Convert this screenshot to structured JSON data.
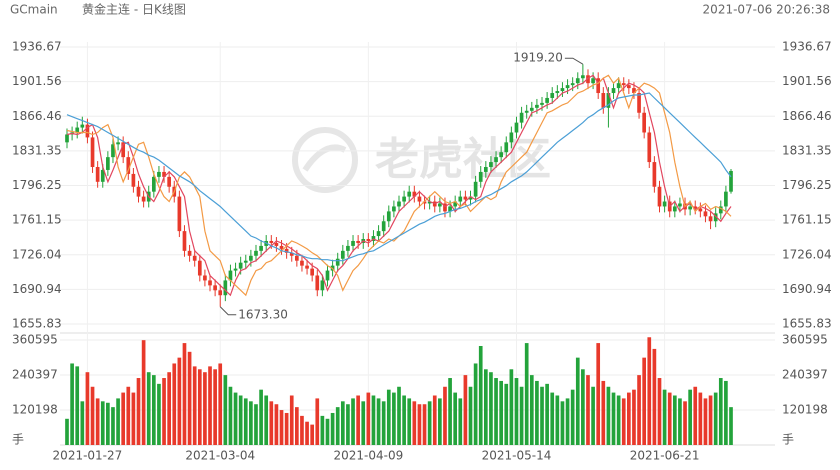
{
  "chart_data": {
    "type": "candlestick",
    "symbol": "GCmain",
    "title": "黄金主连 - 日K线图",
    "timestamp": "2021-07-06 20:26:38",
    "watermark": "老虎社区",
    "grid": true,
    "up_color": "#23a33b",
    "down_color": "#e8392b",
    "categories": [
      null,
      null,
      null,
      null,
      "2021-01-27",
      null,
      null,
      null,
      null,
      null,
      null,
      null,
      null,
      null,
      null,
      null,
      null,
      null,
      null,
      null,
      null,
      null,
      null,
      null,
      null,
      null,
      null,
      null,
      null,
      null,
      "2021-03-04",
      null,
      null,
      null,
      null,
      null,
      null,
      null,
      null,
      null,
      null,
      null,
      null,
      null,
      null,
      null,
      null,
      null,
      null,
      null,
      null,
      null,
      null,
      null,
      null,
      null,
      null,
      null,
      null,
      "2021-04-09",
      null,
      null,
      null,
      null,
      null,
      null,
      null,
      null,
      null,
      null,
      null,
      null,
      null,
      null,
      null,
      null,
      null,
      null,
      null,
      null,
      null,
      null,
      null,
      null,
      null,
      null,
      null,
      null,
      "2021-05-14",
      null,
      null,
      null,
      null,
      null,
      null,
      null,
      null,
      null,
      null,
      null,
      null,
      null,
      null,
      null,
      null,
      null,
      null,
      null,
      null,
      null,
      null,
      null,
      null,
      null,
      null,
      null,
      null,
      "2021-06-21",
      null,
      null,
      null,
      null,
      null,
      null,
      null,
      null,
      null,
      null,
      null,
      null,
      null
    ],
    "open": [
      1840,
      1848,
      1850,
      1855,
      1858,
      1845,
      1815,
      1800,
      1812,
      1825,
      1838,
      1840,
      1825,
      1808,
      1795,
      1785,
      1780,
      1790,
      1805,
      1810,
      1805,
      1795,
      1785,
      1750,
      1730,
      1725,
      1720,
      1705,
      1700,
      1695,
      1690,
      1685,
      1700,
      1710,
      1712,
      1718,
      1720,
      1725,
      1730,
      1735,
      1740,
      1738,
      1735,
      1732,
      1728,
      1725,
      1720,
      1715,
      1712,
      1705,
      1690,
      1700,
      1710,
      1715,
      1722,
      1730,
      1735,
      1740,
      1738,
      1742,
      1740,
      1745,
      1750,
      1760,
      1770,
      1775,
      1780,
      1785,
      1790,
      1785,
      1780,
      1778,
      1780,
      1775,
      1778,
      1770,
      1775,
      1780,
      1785,
      1782,
      1785,
      1800,
      1810,
      1815,
      1820,
      1825,
      1830,
      1840,
      1850,
      1860,
      1870,
      1872,
      1875,
      1878,
      1880,
      1885,
      1890,
      1892,
      1895,
      1898,
      1900,
      1905,
      1908,
      1900,
      1905,
      1890,
      1875,
      1890,
      1895,
      1900,
      1898,
      1895,
      1890,
      1870,
      1850,
      1820,
      1795,
      1775,
      1780,
      1770,
      1775,
      1778,
      1772,
      1775,
      1773,
      1770,
      1765,
      1760,
      1768,
      1775,
      1790
    ],
    "high": [
      1854,
      1856,
      1861,
      1866,
      1864,
      1851,
      1821,
      1818,
      1831,
      1844,
      1846,
      1846,
      1831,
      1814,
      1801,
      1791,
      1796,
      1811,
      1816,
      1816,
      1811,
      1801,
      1791,
      1756,
      1736,
      1731,
      1726,
      1711,
      1706,
      1701,
      1696,
      1706,
      1716,
      1718,
      1724,
      1726,
      1731,
      1736,
      1741,
      1746,
      1746,
      1744,
      1741,
      1738,
      1734,
      1731,
      1726,
      1721,
      1718,
      1711,
      1706,
      1716,
      1721,
      1728,
      1736,
      1741,
      1746,
      1746,
      1748,
      1748,
      1751,
      1756,
      1766,
      1776,
      1781,
      1786,
      1791,
      1796,
      1796,
      1791,
      1786,
      1786,
      1786,
      1784,
      1784,
      1781,
      1786,
      1791,
      1791,
      1791,
      1806,
      1816,
      1821,
      1826,
      1831,
      1836,
      1846,
      1856,
      1866,
      1876,
      1878,
      1881,
      1884,
      1886,
      1891,
      1896,
      1898,
      1901,
      1904,
      1906,
      1911,
      1919.2,
      1914,
      1911,
      1911,
      1896,
      1896,
      1901,
      1906,
      1906,
      1904,
      1901,
      1896,
      1876,
      1856,
      1826,
      1801,
      1786,
      1786,
      1781,
      1784,
      1784,
      1781,
      1781,
      1779,
      1776,
      1771,
      1774,
      1781,
      1796,
      1813
    ],
    "low": [
      1834,
      1842,
      1844,
      1849,
      1839,
      1809,
      1794,
      1794,
      1806,
      1819,
      1832,
      1819,
      1802,
      1789,
      1779,
      1774,
      1774,
      1784,
      1799,
      1799,
      1789,
      1779,
      1744,
      1724,
      1719,
      1714,
      1699,
      1694,
      1689,
      1684,
      1673.3,
      1679,
      1694,
      1704,
      1706,
      1712,
      1714,
      1719,
      1724,
      1729,
      1732,
      1729,
      1726,
      1722,
      1719,
      1714,
      1709,
      1706,
      1699,
      1684,
      1684,
      1694,
      1704,
      1709,
      1716,
      1724,
      1729,
      1732,
      1732,
      1734,
      1734,
      1739,
      1744,
      1754,
      1764,
      1769,
      1774,
      1779,
      1779,
      1774,
      1772,
      1772,
      1769,
      1769,
      1764,
      1764,
      1769,
      1774,
      1776,
      1776,
      1779,
      1794,
      1804,
      1809,
      1814,
      1819,
      1824,
      1834,
      1844,
      1854,
      1864,
      1866,
      1869,
      1872,
      1874,
      1879,
      1884,
      1886,
      1889,
      1892,
      1894,
      1899,
      1894,
      1894,
      1884,
      1869,
      1855,
      1884,
      1889,
      1892,
      1889,
      1884,
      1864,
      1844,
      1814,
      1789,
      1769,
      1769,
      1764,
      1764,
      1769,
      1766,
      1766,
      1767,
      1764,
      1759,
      1752,
      1754,
      1762,
      1769,
      1788
    ],
    "close": [
      1848,
      1850,
      1855,
      1858,
      1845,
      1815,
      1800,
      1812,
      1825,
      1838,
      1840,
      1825,
      1808,
      1795,
      1785,
      1780,
      1790,
      1805,
      1810,
      1805,
      1795,
      1785,
      1750,
      1730,
      1725,
      1720,
      1705,
      1700,
      1695,
      1690,
      1685,
      1700,
      1710,
      1712,
      1718,
      1720,
      1725,
      1730,
      1735,
      1740,
      1738,
      1735,
      1732,
      1728,
      1725,
      1720,
      1715,
      1712,
      1705,
      1690,
      1700,
      1710,
      1715,
      1722,
      1730,
      1735,
      1740,
      1738,
      1742,
      1740,
      1745,
      1750,
      1760,
      1770,
      1775,
      1780,
      1785,
      1790,
      1785,
      1780,
      1778,
      1780,
      1775,
      1778,
      1770,
      1775,
      1780,
      1785,
      1782,
      1785,
      1800,
      1810,
      1815,
      1820,
      1825,
      1830,
      1840,
      1850,
      1860,
      1870,
      1872,
      1875,
      1878,
      1880,
      1885,
      1890,
      1892,
      1895,
      1898,
      1900,
      1905,
      1908,
      1900,
      1905,
      1890,
      1875,
      1890,
      1895,
      1900,
      1898,
      1895,
      1890,
      1870,
      1850,
      1820,
      1795,
      1775,
      1780,
      1770,
      1775,
      1778,
      1772,
      1775,
      1773,
      1770,
      1765,
      1760,
      1768,
      1775,
      1790,
      1811
    ],
    "ma": [
      {
        "color": "#e2475f",
        "values": [
          1848,
          1849,
          1848,
          1850,
          1855,
          1858,
          1845,
          1815,
          1800,
          1812,
          1825,
          1838,
          1840,
          1825,
          1808,
          1795,
          1785,
          1780,
          1790,
          1805,
          1810,
          1805,
          1795,
          1785,
          1750,
          1730,
          1725,
          1720,
          1705,
          1700,
          1695,
          1690,
          1685,
          1700,
          1710,
          1712,
          1718,
          1720,
          1725,
          1730,
          1735,
          1740,
          1738,
          1735,
          1732,
          1728,
          1725,
          1720,
          1715,
          1712,
          1705,
          1690,
          1700,
          1710,
          1715,
          1722,
          1730,
          1735,
          1740,
          1738,
          1742,
          1740,
          1745,
          1750,
          1760,
          1770,
          1775,
          1780,
          1785,
          1790,
          1785,
          1780,
          1778,
          1780,
          1775,
          1778,
          1770,
          1775,
          1780,
          1785,
          1782,
          1785,
          1800,
          1810,
          1815,
          1820,
          1825,
          1830,
          1840,
          1850,
          1860,
          1870,
          1872,
          1875,
          1878,
          1880,
          1885,
          1890,
          1892,
          1895,
          1898,
          1900,
          1905,
          1908,
          1900,
          1905,
          1890,
          1875,
          1890,
          1895,
          1900,
          1898,
          1895,
          1890,
          1870,
          1850,
          1820,
          1795,
          1775,
          1780,
          1770,
          1775,
          1778,
          1772,
          1775,
          1773,
          1770,
          1765,
          1760,
          1768,
          1775
        ]
      },
      {
        "color": "#f39a45",
        "values": [
          1852,
          1851,
          1850,
          1850,
          1850,
          1848,
          1850,
          1855,
          1858,
          1845,
          1815,
          1800,
          1812,
          1825,
          1838,
          1840,
          1825,
          1808,
          1795,
          1785,
          1780,
          1790,
          1805,
          1810,
          1805,
          1795,
          1785,
          1750,
          1730,
          1725,
          1720,
          1705,
          1700,
          1695,
          1690,
          1685,
          1700,
          1710,
          1712,
          1718,
          1720,
          1725,
          1730,
          1735,
          1740,
          1738,
          1735,
          1732,
          1728,
          1725,
          1720,
          1715,
          1712,
          1705,
          1690,
          1700,
          1710,
          1715,
          1722,
          1730,
          1735,
          1740,
          1738,
          1742,
          1740,
          1745,
          1750,
          1760,
          1770,
          1775,
          1780,
          1785,
          1790,
          1785,
          1780,
          1778,
          1780,
          1775,
          1778,
          1770,
          1775,
          1780,
          1785,
          1782,
          1785,
          1800,
          1810,
          1815,
          1820,
          1825,
          1830,
          1840,
          1850,
          1860,
          1870,
          1872,
          1875,
          1878,
          1880,
          1885,
          1890,
          1892,
          1895,
          1898,
          1900,
          1905,
          1908,
          1900,
          1905,
          1890,
          1875,
          1890,
          1895,
          1900,
          1898,
          1895,
          1890,
          1870,
          1850,
          1820,
          1795,
          1775,
          1780,
          1770,
          1775,
          1778,
          1772,
          1775,
          1773,
          1770,
          1765
        ]
      },
      {
        "color": "#4b9fd6",
        "values": [
          1868,
          1866,
          1864,
          1862,
          1860,
          1858,
          1856,
          1853,
          1850,
          1847,
          1844,
          1841,
          1838,
          1835,
          1832,
          1830,
          1827,
          1825,
          1822,
          1818,
          1814,
          1810,
          1806,
          1803,
          1800,
          1796,
          1791,
          1787,
          1783,
          1779,
          1775,
          1770,
          1765,
          1760,
          1755,
          1750,
          1745,
          1743,
          1740,
          1738,
          1735,
          1733,
          1730,
          1729,
          1728,
          1726,
          1725,
          1723,
          1722,
          1722,
          1721,
          1721,
          1720,
          1720,
          1720,
          1722,
          1724,
          1726,
          1727,
          1729,
          1730,
          1733,
          1736,
          1739,
          1742,
          1745,
          1748,
          1751,
          1754,
          1757,
          1759,
          1762,
          1765,
          1767,
          1768,
          1770,
          1772,
          1773,
          1775,
          1777,
          1780,
          1782,
          1785,
          1787,
          1790,
          1793,
          1796,
          1800,
          1803,
          1806,
          1810,
          1815,
          1820,
          1825,
          1830,
          1835,
          1840,
          1844,
          1848,
          1852,
          1856,
          1860,
          1865,
          1868,
          1872,
          1875,
          1878,
          1882,
          1885,
          1886,
          1887,
          1888,
          1888,
          1889,
          1890,
          1885,
          1880,
          1875,
          1870,
          1865,
          1860,
          1855,
          1850,
          1845,
          1840,
          1835,
          1830,
          1825,
          1820,
          1812,
          1805
        ]
      }
    ],
    "ylim": [
      1655.83,
      1936.67
    ],
    "yticks": [
      1655.83,
      1690.94,
      1726.04,
      1761.15,
      1796.25,
      1831.35,
      1866.46,
      1901.56,
      1936.67
    ],
    "annotations": [
      {
        "value": 1919.2,
        "label": "1919.20"
      },
      {
        "value": 1673.3,
        "label": "1673.30"
      }
    ],
    "volume": {
      "unit": "手",
      "ylim": [
        0,
        360595
      ],
      "yticks": [
        120198,
        240397,
        360595
      ],
      "values": [
        90000,
        280000,
        270000,
        150000,
        250000,
        200000,
        160000,
        150000,
        145000,
        130000,
        160000,
        180000,
        200000,
        180000,
        230000,
        360000,
        250000,
        240000,
        210000,
        230000,
        250000,
        280000,
        300000,
        350000,
        320000,
        270000,
        260000,
        250000,
        270000,
        260000,
        280000,
        240000,
        200000,
        180000,
        170000,
        160000,
        150000,
        140000,
        190000,
        170000,
        150000,
        140000,
        120000,
        110000,
        170000,
        130000,
        100000,
        80000,
        70000,
        160000,
        100000,
        90000,
        110000,
        130000,
        150000,
        140000,
        160000,
        170000,
        150000,
        180000,
        170000,
        160000,
        150000,
        190000,
        180000,
        200000,
        170000,
        160000,
        150000,
        140000,
        140000,
        150000,
        170000,
        160000,
        200000,
        230000,
        180000,
        160000,
        240000,
        200000,
        280000,
        340000,
        260000,
        250000,
        230000,
        220000,
        210000,
        260000,
        230000,
        200000,
        350000,
        240000,
        220000,
        200000,
        210000,
        180000,
        170000,
        150000,
        160000,
        190000,
        300000,
        260000,
        240000,
        200000,
        350000,
        220000,
        200000,
        180000,
        170000,
        160000,
        180000,
        190000,
        240000,
        300000,
        370000,
        330000,
        230000,
        190000,
        180000,
        170000,
        160000,
        150000,
        190000,
        200000,
        180000,
        160000,
        170000,
        180000,
        230000,
        220000,
        130000
      ]
    }
  }
}
